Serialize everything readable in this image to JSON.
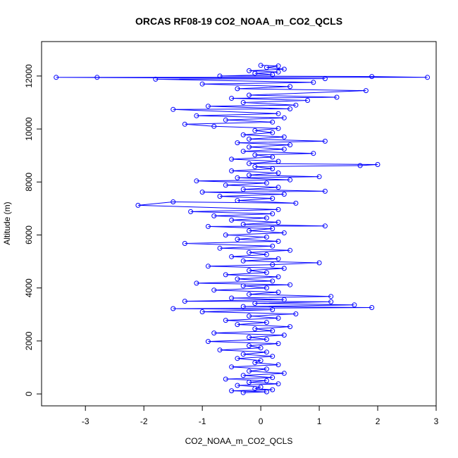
{
  "chart_data": {
    "type": "scatter",
    "title": "ORCAS RF08-19 CO2_NOAA_m_CO2_QCLS",
    "xlabel": "CO2_NOAA_m_CO2_QCLS",
    "ylabel": "Altitude (m)",
    "xlim": [
      -3.75,
      3.0
    ],
    "ylim": [
      -450,
      13300
    ],
    "x_ticks": [
      -3,
      -2,
      -1,
      0,
      1,
      2,
      3
    ],
    "y_ticks": [
      0,
      2000,
      4000,
      6000,
      8000,
      10000,
      12000
    ],
    "grid": false,
    "legend": "none",
    "marker": "open-circle",
    "connect_points": true,
    "color": "#0000ff",
    "series": [
      {
        "points": [
          [
            -0.3,
            50
          ],
          [
            0.1,
            80
          ],
          [
            -0.5,
            120
          ],
          [
            0.2,
            160
          ],
          [
            -0.1,
            200
          ],
          [
            0.0,
            260
          ],
          [
            -0.4,
            320
          ],
          [
            0.3,
            380
          ],
          [
            -0.2,
            440
          ],
          [
            0.1,
            500
          ],
          [
            -0.6,
            560
          ],
          [
            0.2,
            620
          ],
          [
            -0.3,
            700
          ],
          [
            0.4,
            780
          ],
          [
            -0.2,
            860
          ],
          [
            0.1,
            940
          ],
          [
            -0.5,
            1020
          ],
          [
            0.3,
            1100
          ],
          [
            -0.1,
            1180
          ],
          [
            0.0,
            1260
          ],
          [
            -0.4,
            1340
          ],
          [
            0.2,
            1420
          ],
          [
            -0.3,
            1500
          ],
          [
            0.1,
            1580
          ],
          [
            -0.7,
            1660
          ],
          [
            0.0,
            1740
          ],
          [
            -0.2,
            1820
          ],
          [
            0.3,
            1900
          ],
          [
            -0.9,
            1980
          ],
          [
            0.1,
            2060
          ],
          [
            -0.2,
            2140
          ],
          [
            0.4,
            2220
          ],
          [
            -0.8,
            2300
          ],
          [
            0.2,
            2380
          ],
          [
            -0.1,
            2460
          ],
          [
            0.5,
            2540
          ],
          [
            -0.4,
            2620
          ],
          [
            0.1,
            2700
          ],
          [
            -0.6,
            2780
          ],
          [
            0.3,
            2860
          ],
          [
            -0.2,
            2940
          ],
          [
            0.6,
            3020
          ],
          [
            -1.0,
            3100
          ],
          [
            0.2,
            3180
          ],
          [
            -1.5,
            3220
          ],
          [
            1.9,
            3260
          ],
          [
            -0.3,
            3300
          ],
          [
            1.6,
            3360
          ],
          [
            -0.1,
            3420
          ],
          [
            1.2,
            3480
          ],
          [
            -1.3,
            3500
          ],
          [
            0.4,
            3560
          ],
          [
            -0.5,
            3620
          ],
          [
            1.2,
            3680
          ],
          [
            -0.2,
            3760
          ],
          [
            0.3,
            3840
          ],
          [
            -0.8,
            3920
          ],
          [
            0.1,
            4000
          ],
          [
            -0.3,
            4080
          ],
          [
            0.5,
            4120
          ],
          [
            -1.1,
            4180
          ],
          [
            0.2,
            4260
          ],
          [
            -0.4,
            4340
          ],
          [
            0.3,
            4420
          ],
          [
            -0.6,
            4500
          ],
          [
            0.1,
            4580
          ],
          [
            -0.2,
            4660
          ],
          [
            0.4,
            4740
          ],
          [
            -0.9,
            4820
          ],
          [
            0.2,
            4880
          ],
          [
            1.0,
            4950
          ],
          [
            -0.3,
            5020
          ],
          [
            0.3,
            5100
          ],
          [
            -0.5,
            5180
          ],
          [
            0.1,
            5260
          ],
          [
            -0.2,
            5340
          ],
          [
            0.5,
            5420
          ],
          [
            -0.7,
            5500
          ],
          [
            0.2,
            5580
          ],
          [
            -1.3,
            5680
          ],
          [
            0.3,
            5760
          ],
          [
            -0.4,
            5840
          ],
          [
            0.1,
            5920
          ],
          [
            -0.6,
            6000
          ],
          [
            0.4,
            6080
          ],
          [
            -0.2,
            6160
          ],
          [
            0.2,
            6240
          ],
          [
            -0.9,
            6320
          ],
          [
            1.1,
            6340
          ],
          [
            -0.3,
            6400
          ],
          [
            0.3,
            6480
          ],
          [
            -0.5,
            6560
          ],
          [
            0.1,
            6640
          ],
          [
            -0.8,
            6720
          ],
          [
            0.2,
            6800
          ],
          [
            -1.2,
            6880
          ],
          [
            0.3,
            6960
          ],
          [
            -2.1,
            7120
          ],
          [
            -1.5,
            7250
          ],
          [
            0.6,
            7200
          ],
          [
            -0.4,
            7300
          ],
          [
            0.2,
            7380
          ],
          [
            -0.7,
            7460
          ],
          [
            0.4,
            7540
          ],
          [
            -1.0,
            7620
          ],
          [
            1.1,
            7650
          ],
          [
            -0.3,
            7720
          ],
          [
            0.3,
            7800
          ],
          [
            -0.6,
            7880
          ],
          [
            0.1,
            7960
          ],
          [
            -1.1,
            8040
          ],
          [
            0.5,
            8080
          ],
          [
            -0.4,
            8160
          ],
          [
            1.0,
            8200
          ],
          [
            -0.2,
            8260
          ],
          [
            0.3,
            8340
          ],
          [
            -0.5,
            8420
          ],
          [
            0.2,
            8500
          ],
          [
            -0.1,
            8580
          ],
          [
            1.7,
            8620
          ],
          [
            2.0,
            8660
          ],
          [
            -0.2,
            8700
          ],
          [
            0.3,
            8780
          ],
          [
            -0.5,
            8860
          ],
          [
            0.2,
            8940
          ],
          [
            -0.1,
            9020
          ],
          [
            0.9,
            9080
          ],
          [
            -0.3,
            9160
          ],
          [
            0.4,
            9240
          ],
          [
            -0.2,
            9320
          ],
          [
            0.5,
            9400
          ],
          [
            -0.4,
            9480
          ],
          [
            1.1,
            9540
          ],
          [
            -0.2,
            9620
          ],
          [
            0.4,
            9700
          ],
          [
            -0.3,
            9780
          ],
          [
            0.2,
            9860
          ],
          [
            -0.1,
            9940
          ],
          [
            0.3,
            10020
          ],
          [
            -0.8,
            10100
          ],
          [
            -1.3,
            10180
          ],
          [
            0.2,
            10260
          ],
          [
            -0.6,
            10340
          ],
          [
            0.4,
            10420
          ],
          [
            -1.1,
            10500
          ],
          [
            0.3,
            10580
          ],
          [
            -1.5,
            10740
          ],
          [
            0.5,
            10760
          ],
          [
            -0.9,
            10860
          ],
          [
            0.6,
            10900
          ],
          [
            -0.3,
            11000
          ],
          [
            0.8,
            11080
          ],
          [
            -0.5,
            11160
          ],
          [
            1.3,
            11200
          ],
          [
            -0.2,
            11280
          ],
          [
            1.8,
            11450
          ],
          [
            -0.4,
            11520
          ],
          [
            0.5,
            11600
          ],
          [
            -1.0,
            11700
          ],
          [
            0.9,
            11760
          ],
          [
            -1.8,
            11880
          ],
          [
            1.1,
            11900
          ],
          [
            -3.5,
            11950
          ],
          [
            -2.8,
            11950
          ],
          [
            2.85,
            11950
          ],
          [
            1.9,
            11980
          ],
          [
            -0.7,
            12000
          ],
          [
            0.2,
            12050
          ],
          [
            -0.1,
            12100
          ],
          [
            0.3,
            12150
          ],
          [
            -0.2,
            12200
          ],
          [
            0.4,
            12260
          ],
          [
            0.1,
            12320
          ],
          [
            0.3,
            12380
          ],
          [
            0.0,
            12400
          ]
        ]
      }
    ]
  }
}
